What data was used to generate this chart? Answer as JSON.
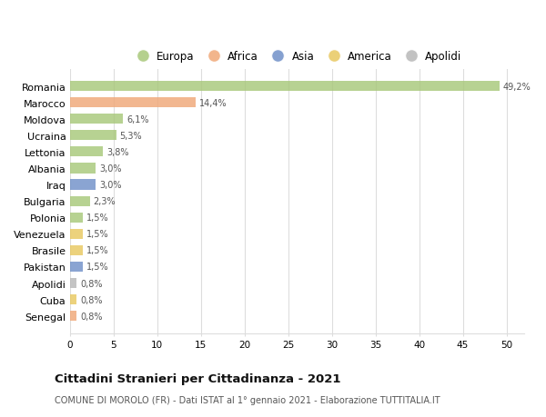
{
  "countries": [
    "Romania",
    "Marocco",
    "Moldova",
    "Ucraina",
    "Lettonia",
    "Albania",
    "Iraq",
    "Bulgaria",
    "Polonia",
    "Venezuela",
    "Brasile",
    "Pakistan",
    "Apolidi",
    "Cuba",
    "Senegal"
  ],
  "values": [
    49.2,
    14.4,
    6.1,
    5.3,
    3.8,
    3.0,
    3.0,
    2.3,
    1.5,
    1.5,
    1.5,
    1.5,
    0.8,
    0.8,
    0.8
  ],
  "labels": [
    "49,2%",
    "14,4%",
    "6,1%",
    "5,3%",
    "3,8%",
    "3,0%",
    "3,0%",
    "2,3%",
    "1,5%",
    "1,5%",
    "1,5%",
    "1,5%",
    "0,8%",
    "0,8%",
    "0,8%"
  ],
  "colors": [
    "#a8c87a",
    "#f0a878",
    "#a8c87a",
    "#a8c87a",
    "#a8c87a",
    "#a8c87a",
    "#7090c8",
    "#a8c87a",
    "#a8c87a",
    "#e8c860",
    "#e8c860",
    "#7090c8",
    "#b8b8b8",
    "#e8c860",
    "#f0a878"
  ],
  "legend_labels": [
    "Europa",
    "Africa",
    "Asia",
    "America",
    "Apolidi"
  ],
  "legend_colors": [
    "#a8c87a",
    "#f0a878",
    "#7090c8",
    "#e8c860",
    "#b8b8b8"
  ],
  "title": "Cittadini Stranieri per Cittadinanza - 2021",
  "subtitle": "COMUNE DI MOROLO (FR) - Dati ISTAT al 1° gennaio 2021 - Elaborazione TUTTITALIA.IT",
  "xlabel_ticks": [
    0,
    5,
    10,
    15,
    20,
    25,
    30,
    35,
    40,
    45,
    50
  ],
  "xlim": [
    0,
    52
  ],
  "background_color": "#ffffff",
  "grid_color": "#dddddd"
}
